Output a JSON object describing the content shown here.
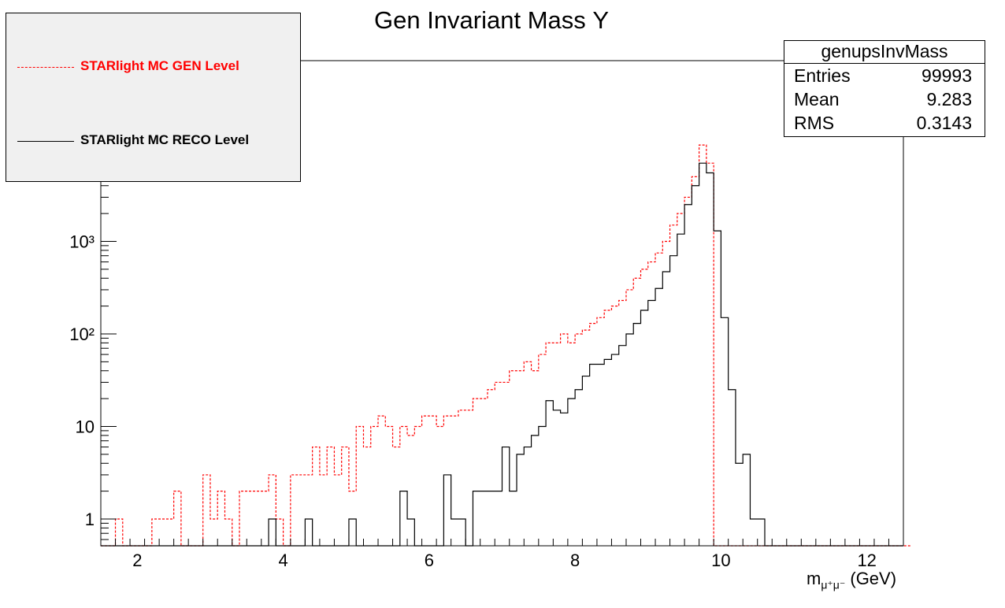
{
  "title": "Gen Invariant Mass Υ",
  "legend": {
    "entries": [
      {
        "label": "STARlight MC GEN Level",
        "color": "#ff0000",
        "style": "dashed"
      },
      {
        "label": "STARlight MC RECO Level",
        "color": "#000000",
        "style": "solid"
      }
    ]
  },
  "stats": {
    "title": "genupsInvMass",
    "rows": [
      {
        "key": "Entries",
        "value": "99993"
      },
      {
        "key": "Mean",
        "value": "9.283"
      },
      {
        "key": "RMS",
        "value": "0.3143"
      }
    ]
  },
  "xaxis_title": {
    "main": "m",
    "sub": "μ⁺μ⁻",
    "unit": " (GeV)"
  },
  "chart_data": {
    "type": "histogram",
    "title": "Gen Invariant Mass Υ",
    "xlabel": "m_{μ⁺μ⁻} (GeV)",
    "ylabel": "",
    "yscale": "log",
    "xlim": [
      1.5,
      12.5
    ],
    "ylim": [
      0.5,
      100000
    ],
    "x_ticks": [
      "2",
      "4",
      "6",
      "8",
      "10",
      "12"
    ],
    "y_ticks": [
      "1",
      "10",
      "10²",
      "10³"
    ],
    "bin_edges_start": 1.5,
    "bin_width": 0.1,
    "series": [
      {
        "name": "STARlight MC GEN Level",
        "color": "#ff0000",
        "style": "dashed",
        "values": [
          0,
          0,
          1,
          0,
          0,
          0,
          0,
          1,
          1,
          1,
          2,
          0,
          0,
          0,
          3,
          1,
          2,
          1,
          0,
          2,
          2,
          2,
          2,
          3,
          1,
          0,
          3,
          3,
          3,
          6,
          3,
          6,
          3,
          6,
          2,
          10,
          6,
          10,
          13,
          10,
          6,
          10,
          8,
          10,
          13,
          13,
          10,
          13,
          13,
          15,
          15,
          20,
          20,
          25,
          30,
          30,
          40,
          40,
          50,
          40,
          60,
          80,
          80,
          100,
          80,
          100,
          110,
          130,
          150,
          180,
          200,
          230,
          300,
          400,
          500,
          600,
          750,
          1000,
          1500,
          2000,
          3000,
          5000,
          11000,
          7000,
          0,
          0,
          0,
          0,
          0,
          0,
          0,
          0,
          0,
          0,
          0,
          0,
          0,
          0,
          0,
          0,
          0,
          0,
          0,
          0,
          0,
          0,
          0,
          0,
          0,
          0,
          0
        ]
      },
      {
        "name": "STARlight MC RECO Level",
        "color": "#000000",
        "style": "solid",
        "values": [
          0,
          0,
          0,
          0,
          0,
          0,
          0,
          0,
          0,
          0,
          0,
          0,
          0,
          0,
          0,
          0,
          0,
          0,
          0,
          0,
          0,
          0,
          0,
          1,
          0,
          0,
          0,
          0,
          1,
          0,
          0,
          0,
          0,
          0,
          1,
          0,
          0,
          0,
          0,
          0,
          0,
          2,
          1,
          0,
          0,
          0,
          0,
          3,
          1,
          1,
          0,
          2,
          2,
          2,
          2,
          6,
          2,
          5,
          6,
          8,
          10,
          19,
          15,
          14,
          20,
          25,
          35,
          47,
          47,
          53,
          60,
          75,
          100,
          130,
          180,
          230,
          310,
          470,
          700,
          1200,
          2500,
          4000,
          7000,
          5500,
          1300,
          150,
          25,
          4,
          5,
          1,
          1,
          0,
          0,
          0,
          0,
          0,
          0,
          0,
          0,
          0,
          0,
          0,
          0,
          0,
          0,
          0,
          0,
          0,
          0,
          0
        ]
      }
    ]
  }
}
